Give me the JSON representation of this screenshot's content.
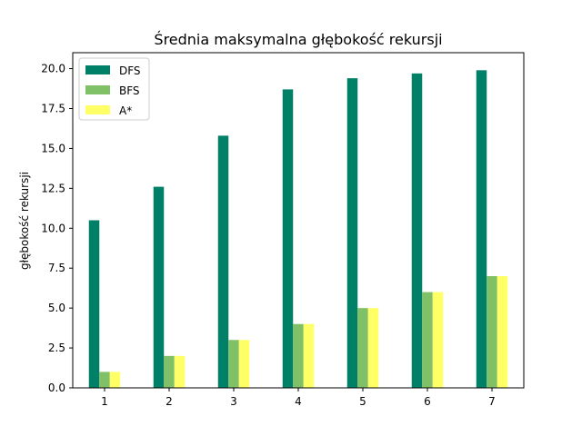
{
  "chart_data": {
    "type": "bar",
    "title": "Średnia maksymalna głębokość rekursji",
    "xlabel": "",
    "ylabel": "głębokość rekursji",
    "categories": [
      "1",
      "2",
      "3",
      "4",
      "5",
      "6",
      "7"
    ],
    "series": [
      {
        "name": "DFS",
        "color": "#008066",
        "values": [
          10.5,
          12.6,
          15.8,
          18.7,
          19.4,
          19.7,
          19.9
        ]
      },
      {
        "name": "BFS",
        "color": "#80c066",
        "values": [
          1,
          2,
          3,
          4,
          5,
          6,
          7
        ]
      },
      {
        "name": "A*",
        "color": "#ffff66",
        "values": [
          1,
          2,
          3,
          4,
          5,
          6,
          7
        ]
      }
    ],
    "ylim": [
      0,
      21
    ],
    "yticks": [
      "0.0",
      "2.5",
      "5.0",
      "7.5",
      "10.0",
      "12.5",
      "15.0",
      "17.5",
      "20.0"
    ],
    "grid": false,
    "legend": "top-left"
  }
}
